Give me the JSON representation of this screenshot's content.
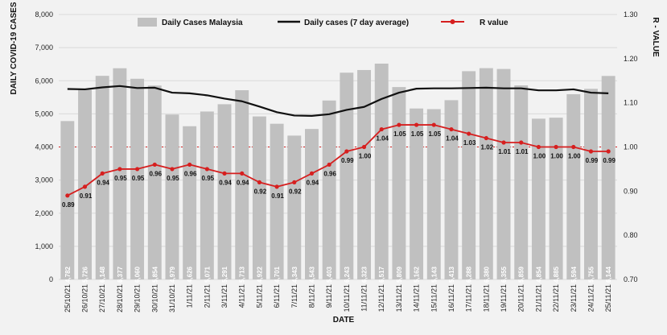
{
  "chart_data": {
    "type": "bar",
    "x_label": "DATE",
    "y_label": "DAILY COVID-19 CASES",
    "y2_label": "R - VALUE",
    "ylim": [
      0,
      8000
    ],
    "y_ticks": [
      "0",
      "1,000",
      "2,000",
      "3,000",
      "4,000",
      "5,000",
      "6,000",
      "7,000",
      "8,000"
    ],
    "y2lim": [
      0.7,
      1.3
    ],
    "y2_ticks": [
      "0.70",
      "0.80",
      "0.90",
      "1.00",
      "1.10",
      "1.20",
      "1.30"
    ],
    "reference_line_r": 1.0,
    "grid": "horizontal",
    "legend": {
      "position": "top",
      "entries": [
        "Daily Cases Malaysia",
        "Daily cases (7 day average)",
        "R value"
      ]
    },
    "categories": [
      "25/10/21",
      "26/10/21",
      "27/10/21",
      "28/10/21",
      "29/10/21",
      "30/10/21",
      "31/10/21",
      "1/11/21",
      "2/11/21",
      "3/11/21",
      "4/11/21",
      "5/11/21",
      "6/11/21",
      "7/11/21",
      "8/11/21",
      "9/11/21",
      "10/11/21",
      "11/11/21",
      "12/11/21",
      "13/11/21",
      "14/11/21",
      "15/11/21",
      "16/11/21",
      "17/11/21",
      "18/11/21",
      "19/11/21",
      "20/11/21",
      "21/11/21",
      "22/11/21",
      "23/11/21",
      "24/11/21",
      "25/11/21"
    ],
    "series": [
      {
        "name": "Daily Cases Malaysia",
        "type": "bar",
        "axis": "left",
        "values": [
          4782,
          5726,
          6148,
          6377,
          6060,
          5854,
          4979,
          4626,
          5071,
          5291,
          5713,
          4922,
          4701,
          4343,
          4543,
          5403,
          6243,
          6323,
          6517,
          5809,
          5162,
          5143,
          5413,
          6288,
          6380,
          6355,
          5859,
          4854,
          4885,
          5594,
          5755,
          6144
        ],
        "labels": [
          "4,782",
          "5,726",
          "6,148",
          "6,377",
          "6,060",
          "5,854",
          "4,979",
          "4,626",
          "5,071",
          "5,291",
          "5,713",
          "4,922",
          "4,701",
          "4,343",
          "4,543",
          "5,403",
          "6,243",
          "6,323",
          "6,517",
          "5,809",
          "5,162",
          "5,143",
          "5,413",
          "6,288",
          "6,380",
          "6,355",
          "5,859",
          "4,854",
          "4,885",
          "5,594",
          "5,755",
          "6,144"
        ]
      },
      {
        "name": "Daily cases (7 day average)",
        "type": "line",
        "axis": "left",
        "values": [
          5750,
          5740,
          5800,
          5840,
          5780,
          5790,
          5640,
          5620,
          5560,
          5460,
          5380,
          5220,
          5050,
          4950,
          4940,
          4990,
          5120,
          5210,
          5450,
          5640,
          5760,
          5770,
          5770,
          5780,
          5790,
          5770,
          5770,
          5710,
          5710,
          5740,
          5640,
          5620
        ]
      },
      {
        "name": "R value",
        "type": "line",
        "axis": "right",
        "values": [
          0.89,
          0.91,
          0.94,
          0.95,
          0.95,
          0.96,
          0.95,
          0.96,
          0.95,
          0.94,
          0.94,
          0.92,
          0.91,
          0.92,
          0.94,
          0.96,
          0.99,
          1.0,
          1.04,
          1.05,
          1.05,
          1.05,
          1.04,
          1.03,
          1.02,
          1.01,
          1.01,
          1.0,
          1.0,
          1.0,
          0.99,
          0.99
        ],
        "labels": [
          "0.89",
          "0.91",
          "0.94",
          "0.95",
          "0.95",
          "0.96",
          "0.95",
          "0.96",
          "0.95",
          "0.94",
          "0.94",
          "0.92",
          "0.91",
          "0.92",
          "0.94",
          "0.96",
          "0.99",
          "1.00",
          "1.04",
          "1.05",
          "1.05",
          "1.05",
          "1.04",
          "1.03",
          "1.02",
          "1.01",
          "1.01",
          "1.00",
          "1.00",
          "1.00",
          "0.99",
          "0.99"
        ]
      }
    ]
  },
  "colors": {
    "bars": "#c0c0c0",
    "bar_labels": "#ffffff",
    "average_line": "#111111",
    "r_line": "#d61f1f",
    "reference_line": "#d61f1f",
    "gridlines": "#d9d9d9",
    "background": "#f2f2f2"
  }
}
